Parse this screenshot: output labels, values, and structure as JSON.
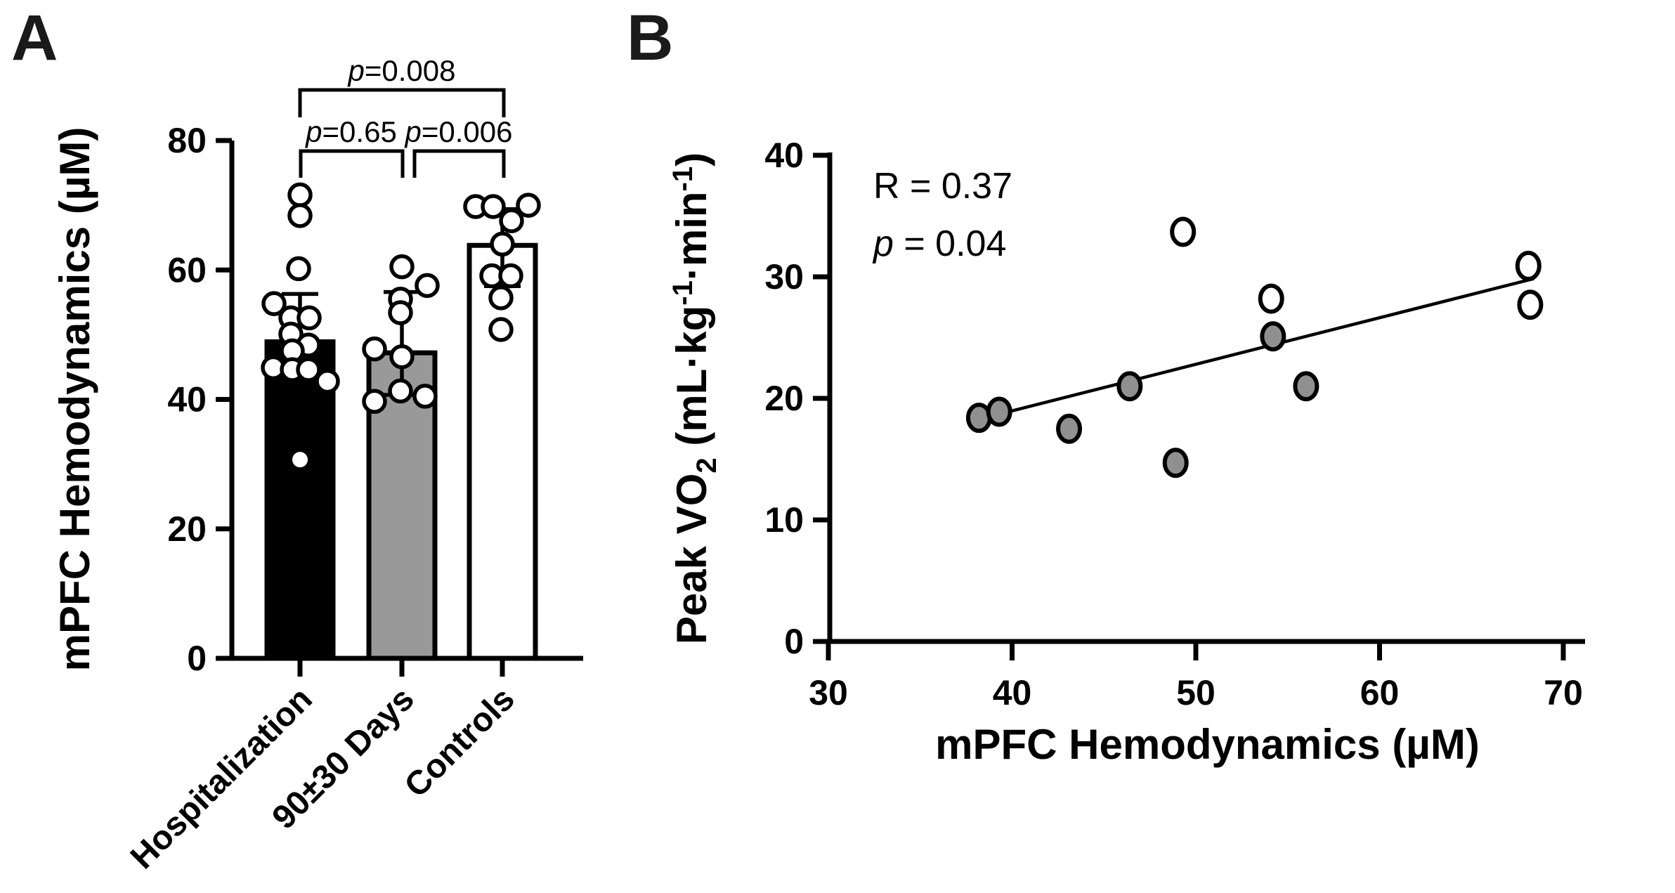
{
  "figure_title": "",
  "chart_data": [
    {
      "type": "bar",
      "panel": "A",
      "ylabel": "mPFC Hemodynamics (µM)",
      "ylim": [
        0,
        80
      ],
      "yticks": [
        0,
        20,
        40,
        60,
        80
      ],
      "grid": false,
      "categories": [
        "Hospitalization",
        "90±30 Days",
        "Controls"
      ],
      "bars": [
        {
          "category": "Hospitalization",
          "mean": 48.9,
          "sd_upper": 56.3,
          "sd_lower": null,
          "fill": "#000000",
          "points": [
            [
              71.6,
              0
            ],
            [
              68.4,
              0
            ],
            [
              60.2,
              -2
            ],
            [
              54.8,
              -37
            ],
            [
              52.6,
              -13
            ],
            [
              52.6,
              13
            ],
            [
              50.1,
              -13
            ],
            [
              48.4,
              12
            ],
            [
              47.5,
              -11
            ],
            [
              44.9,
              -38
            ],
            [
              44.6,
              -11
            ],
            [
              44.6,
              12
            ],
            [
              42.8,
              39
            ],
            [
              30.7,
              0,
              1
            ]
          ]
        },
        {
          "category": "90±30 Days",
          "mean": 47.2,
          "sd_upper": 56.6,
          "sd_lower": 40.7,
          "fill": "#999999",
          "points": [
            [
              60.5,
              0
            ],
            [
              57.6,
              36
            ],
            [
              55.5,
              -2
            ],
            [
              53.4,
              -2
            ],
            [
              47.8,
              -39
            ],
            [
              46.6,
              0
            ],
            [
              41.3,
              -2
            ],
            [
              40.5,
              33
            ],
            [
              39.7,
              -39
            ]
          ]
        },
        {
          "category": "Controls",
          "mean": 63.8,
          "sd_upper": 69.4,
          "sd_lower": 57.5,
          "fill": "#ffffff",
          "points": [
            [
              69.8,
              -38
            ],
            [
              69.8,
              -13
            ],
            [
              70.0,
              37
            ],
            [
              67.6,
              13
            ],
            [
              64.0,
              0
            ],
            [
              59.1,
              -15
            ],
            [
              59.1,
              12
            ],
            [
              55.7,
              -2
            ],
            [
              50.8,
              -2
            ]
          ]
        }
      ],
      "comparisons": [
        {
          "text": "p=0.008",
          "italic_first": true,
          "between": [
            0,
            2
          ]
        },
        {
          "text": "p=0.65",
          "italic_first": true,
          "between": [
            0,
            1
          ]
        },
        {
          "text": "p=0.006",
          "italic_first": true,
          "between": [
            1,
            2
          ]
        }
      ],
      "marker_color": "#ffffff",
      "axis_color": "#000000"
    },
    {
      "type": "scatter",
      "panel": "B",
      "xlabel": "mPFC Hemodynamics (µM)",
      "ylabel_segments": [
        {
          "t": "Peak VO"
        },
        {
          "t": "2",
          "style": "sub"
        },
        {
          "t": " (mL·kg"
        },
        {
          "t": "-1",
          "style": "sup"
        },
        {
          "t": "·min"
        },
        {
          "t": "-1",
          "style": "sup"
        },
        {
          "t": ")"
        }
      ],
      "xlim": [
        30,
        70
      ],
      "ylim": [
        0,
        40
      ],
      "xticks": [
        30,
        40,
        50,
        60,
        70
      ],
      "yticks": [
        0,
        10,
        20,
        30,
        40
      ],
      "grid": false,
      "annotations": [
        {
          "text": "R = 0.37",
          "italic_first": false
        },
        {
          "text": "p = 0.04",
          "italic_first": true
        }
      ],
      "series": [
        {
          "name": "open-circles",
          "fill": "#ffffff",
          "points": [
            [
              49.3,
              33.7
            ],
            [
              54.1,
              28.2
            ],
            [
              68.1,
              30.9
            ],
            [
              68.2,
              27.7
            ]
          ]
        },
        {
          "name": "filled-circles",
          "fill": "#909090",
          "points": [
            [
              38.2,
              18.4
            ],
            [
              39.3,
              18.9
            ],
            [
              43.1,
              17.5
            ],
            [
              46.4,
              21.0
            ],
            [
              48.9,
              14.7
            ],
            [
              54.2,
              25.1
            ],
            [
              56.0,
              21.0
            ]
          ]
        }
      ],
      "regression_line": {
        "x1": 39.8,
        "y1": 18.9,
        "x2": 68.4,
        "y2": 29.85
      },
      "axis_color": "#000000"
    }
  ]
}
